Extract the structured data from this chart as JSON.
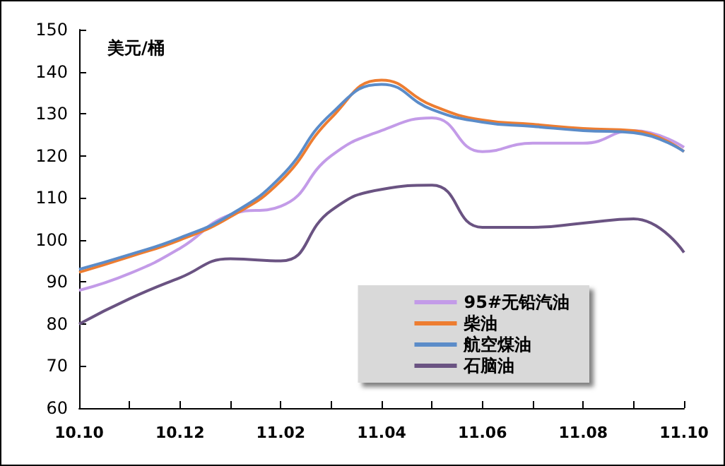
{
  "chart_data": {
    "type": "line",
    "ylabel": "美元/桶",
    "categories": [
      "10.10",
      null,
      "10.12",
      null,
      "11.02",
      null,
      "11.04",
      null,
      "11.06",
      null,
      "11.08",
      null,
      "11.10"
    ],
    "ylim": [
      60,
      150
    ],
    "yticks": [
      60,
      70,
      80,
      90,
      100,
      110,
      120,
      130,
      140,
      150
    ],
    "grid": false,
    "legend": "bottom right",
    "marker": "none",
    "line_style": "solid",
    "series": [
      {
        "name": "95#无铅汽油",
        "color": "#c39be8",
        "values": [
          88,
          92,
          98,
          106,
          108,
          120,
          126,
          129,
          121,
          123,
          123,
          126,
          122
        ]
      },
      {
        "name": "柴油",
        "color": "#ed7d31",
        "values": [
          92.3,
          96,
          100,
          105.5,
          114,
          129,
          138,
          132,
          128.5,
          127.5,
          126.5,
          126,
          121
        ]
      },
      {
        "name": "航空煤油",
        "color": "#5b8cc9",
        "values": [
          93,
          96.5,
          100.5,
          106,
          115,
          130,
          137,
          131,
          128,
          127,
          126,
          125.5,
          121
        ]
      },
      {
        "name": "石脑油",
        "color": "#6a5382",
        "values": [
          80,
          86,
          91,
          95.5,
          95,
          107,
          112,
          113,
          103,
          103,
          104,
          105,
          97
        ]
      }
    ]
  }
}
